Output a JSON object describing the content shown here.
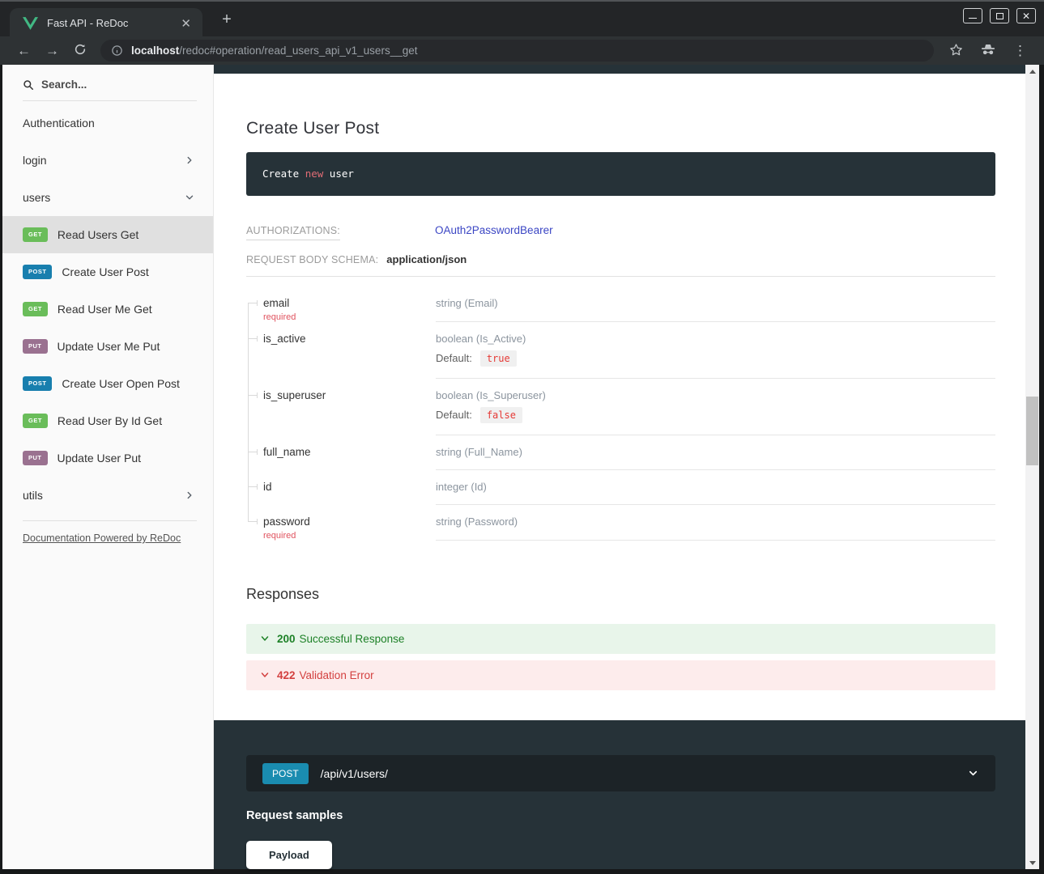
{
  "browser": {
    "tab_title": "Fast API - ReDoc",
    "new_tab_label": "+",
    "url": {
      "host": "localhost",
      "rest": "/redoc#operation/read_users_api_v1_users__get"
    }
  },
  "sidebar": {
    "search_placeholder": "Search...",
    "items": [
      {
        "label": "Authentication",
        "kind": "link"
      },
      {
        "label": "login",
        "kind": "group",
        "chevron": "right"
      },
      {
        "label": "users",
        "kind": "group",
        "chevron": "down"
      },
      {
        "label": "Read Users Get",
        "kind": "operation",
        "method": "GET",
        "active": true
      },
      {
        "label": "Create User Post",
        "kind": "operation",
        "method": "POST"
      },
      {
        "label": "Read User Me Get",
        "kind": "operation",
        "method": "GET"
      },
      {
        "label": "Update User Me Put",
        "kind": "operation",
        "method": "PUT"
      },
      {
        "label": "Create User Open Post",
        "kind": "operation",
        "method": "POST"
      },
      {
        "label": "Read User By Id Get",
        "kind": "operation",
        "method": "GET"
      },
      {
        "label": "Update User Put",
        "kind": "operation",
        "method": "PUT"
      },
      {
        "label": "utils",
        "kind": "group",
        "chevron": "right"
      }
    ],
    "footer_link": "Documentation Powered by ReDoc"
  },
  "main": {
    "title": "Create User Post",
    "description_code": {
      "prefix": "Create ",
      "highlight": "new",
      "suffix": " user"
    },
    "authorizations": {
      "label": "AUTHORIZATIONS:",
      "value": "OAuth2PasswordBearer"
    },
    "request_body": {
      "label": "REQUEST BODY SCHEMA:",
      "value": "application/json"
    },
    "schema_fields": [
      {
        "name": "email",
        "required": "required",
        "type": "string (Email)"
      },
      {
        "name": "is_active",
        "type": "boolean (Is_Active)",
        "default_label": "Default:",
        "default": "true"
      },
      {
        "name": "is_superuser",
        "type": "boolean (Is_Superuser)",
        "default_label": "Default:",
        "default": "false"
      },
      {
        "name": "full_name",
        "type": "string (Full_Name)"
      },
      {
        "name": "id",
        "type": "integer (Id)"
      },
      {
        "name": "password",
        "required": "required",
        "type": "string (Password)"
      }
    ],
    "responses": {
      "heading": "Responses",
      "items": [
        {
          "code": "200",
          "label": "Successful Response",
          "tone": "success"
        },
        {
          "code": "422",
          "label": "Validation Error",
          "tone": "error"
        }
      ]
    },
    "samples": {
      "method": "POST",
      "path": "/api/v1/users/",
      "heading": "Request samples",
      "tab": "Payload"
    }
  },
  "colors": {
    "get_badge": "#6abd5a",
    "post_badge": "#187fae",
    "put_badge": "#9a7190",
    "samples_method": "#1a8cb0",
    "link_blue": "#3b46c4",
    "panel_dark": "#263238",
    "success_green": "#1d8127",
    "error_red": "#d3403f",
    "required_red": "#e0535f",
    "code_keyword": "#e06c75"
  }
}
